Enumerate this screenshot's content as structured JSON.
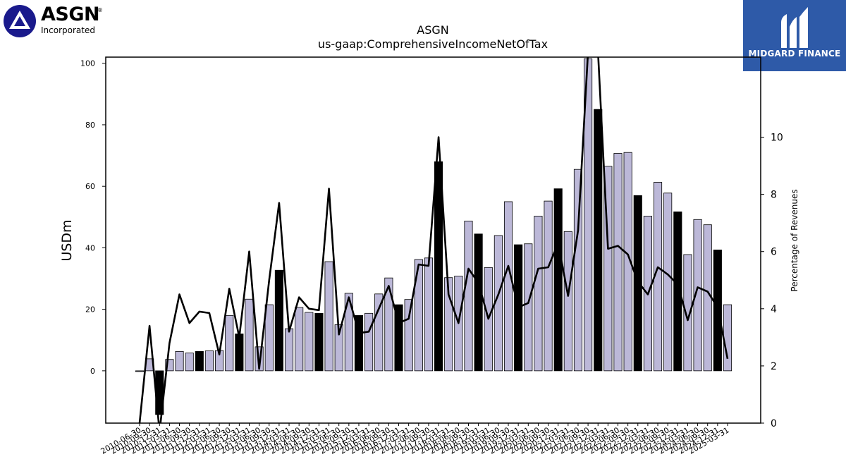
{
  "logo_left": {
    "word": "ASGN",
    "registered": "®",
    "sub": "Incorporated"
  },
  "logo_right": {
    "name": "MIDGARD FINANCE"
  },
  "colors": {
    "bar_light": "#bcb8d8",
    "bar_dark": "#000000",
    "line": "#000000",
    "watermark_bg": "#2e5aa8",
    "asgn_blue": "#1a1a8c"
  },
  "chart_data": {
    "type": "bar",
    "title": "ASGN",
    "subtitle": "us-gaap:ComprehensiveIncomeNetOfTax",
    "ylabel": "USDm",
    "y2label": "Percentage of Revenues",
    "ylim": [
      -17,
      102
    ],
    "y2lim": [
      0,
      12.8
    ],
    "yticks": [
      0,
      20,
      40,
      60,
      80,
      100
    ],
    "y2ticks": [
      0,
      2,
      4,
      6,
      8,
      10
    ],
    "grid": false,
    "categories": [
      "2010-06-30",
      "2010-09-30",
      "2010-12-31",
      "2011-03-31",
      "2011-06-30",
      "2011-09-30",
      "2011-12-31",
      "2012-03-31",
      "2012-06-30",
      "2012-09-30",
      "2012-12-31",
      "2013-03-31",
      "2013-06-30",
      "2013-09-30",
      "2013-12-31",
      "2014-03-31",
      "2014-06-30",
      "2014-09-30",
      "2014-12-31",
      "2015-03-31",
      "2015-06-30",
      "2015-09-30",
      "2015-12-31",
      "2016-03-31",
      "2016-06-30",
      "2016-09-30",
      "2016-12-31",
      "2017-03-31",
      "2017-06-30",
      "2017-09-30",
      "2017-12-31",
      "2018-03-31",
      "2018-06-30",
      "2018-09-30",
      "2018-12-31",
      "2019-03-31",
      "2019-06-30",
      "2019-09-30",
      "2019-12-31",
      "2020-03-31",
      "2020-06-30",
      "2020-09-30",
      "2020-12-31",
      "2021-03-31",
      "2021-06-30",
      "2021-09-30",
      "2021-12-31",
      "2022-03-31",
      "2022-06-30",
      "2022-09-30",
      "2022-12-31",
      "2023-03-31",
      "2023-06-30",
      "2023-09-30",
      "2023-12-31",
      "2024-03-31",
      "2024-06-30",
      "2024-09-30",
      "2024-12-31",
      "2025-03-31"
    ],
    "series": [
      {
        "kind": "bar",
        "values": [
          -0.2,
          3.9,
          -14.2,
          3.7,
          6.3,
          5.8,
          6.3,
          6.5,
          6.6,
          18.0,
          12.0,
          23.3,
          7.8,
          21.5,
          32.7,
          13.7,
          20.6,
          19.0,
          18.7,
          35.5,
          15.0,
          25.2,
          18.0,
          18.7,
          25.0,
          30.2,
          21.5,
          23.2,
          36.2,
          36.7,
          68.0,
          30.3,
          30.8,
          48.7,
          44.5,
          33.6,
          44.0,
          55.0,
          41.0,
          41.3,
          50.3,
          55.2,
          59.2,
          45.3,
          65.5,
          101.5,
          85.0,
          66.5,
          70.7,
          71.0,
          57.0,
          50.3,
          61.3,
          57.8,
          51.7,
          37.8,
          49.2,
          47.5,
          39.3,
          21.5
        ],
        "emphasis": [
          0,
          0,
          1,
          0,
          0,
          0,
          1,
          0,
          0,
          0,
          1,
          0,
          0,
          0,
          1,
          0,
          0,
          0,
          1,
          0,
          0,
          0,
          1,
          0,
          0,
          0,
          1,
          0,
          0,
          0,
          1,
          0,
          0,
          0,
          1,
          0,
          0,
          0,
          1,
          0,
          0,
          0,
          1,
          0,
          0,
          0,
          1,
          0,
          0,
          0,
          1,
          0,
          0,
          0,
          1,
          0,
          0,
          0,
          1,
          0
        ]
      },
      {
        "kind": "line",
        "axis": "right",
        "values": [
          0.0,
          3.4,
          -0.3,
          2.8,
          4.5,
          3.5,
          3.9,
          3.85,
          2.4,
          4.7,
          3.0,
          6.0,
          1.9,
          5.0,
          7.7,
          3.2,
          4.4,
          4.0,
          3.95,
          8.2,
          3.1,
          4.4,
          3.15,
          3.2,
          4.0,
          4.8,
          3.5,
          3.65,
          5.55,
          5.5,
          10.0,
          4.5,
          3.5,
          5.4,
          4.9,
          3.65,
          4.5,
          5.5,
          4.05,
          4.2,
          5.4,
          5.45,
          6.3,
          4.45,
          6.75,
          13.0,
          13.0,
          6.1,
          6.2,
          5.9,
          4.95,
          4.5,
          5.45,
          5.2,
          4.85,
          3.6,
          4.75,
          4.6,
          4.05,
          2.25
        ]
      }
    ]
  }
}
